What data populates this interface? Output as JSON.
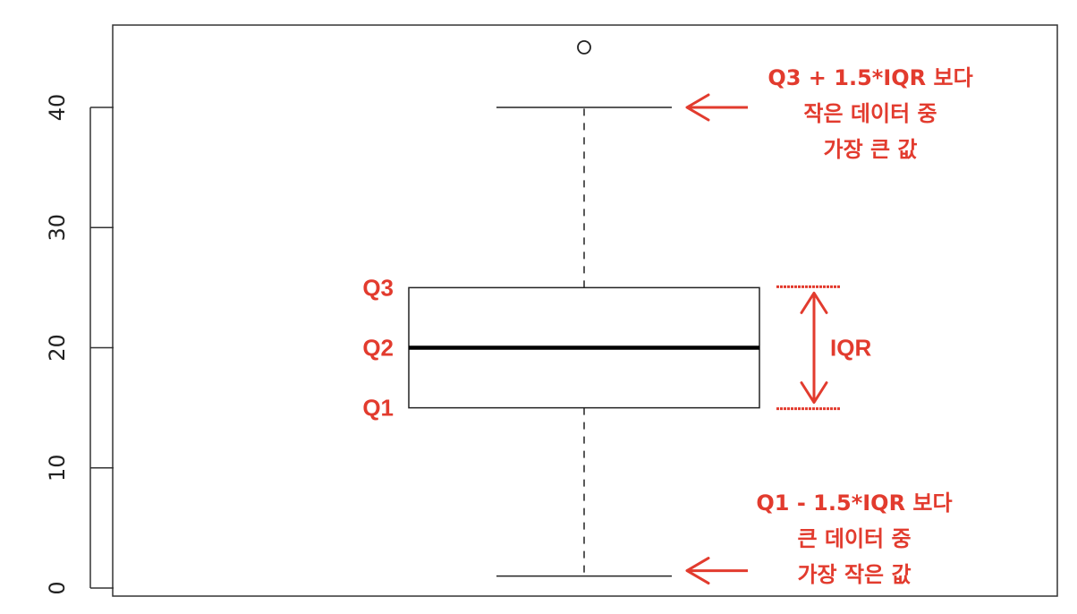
{
  "chart_data": {
    "type": "boxplot",
    "y_ticks": [
      0,
      10,
      20,
      30,
      40
    ],
    "ylim": [
      -0.5,
      47
    ],
    "boxplot": {
      "whisker_low": 1,
      "q1": 15,
      "median": 20,
      "q3": 25,
      "whisker_high": 40,
      "outliers": [
        45
      ]
    },
    "quartile_labels": [
      "Q3",
      "Q2",
      "Q1"
    ],
    "iqr_label": "IQR",
    "annotation_upper": [
      "Q3 + 1.5*IQR 보다",
      "작은 데이터 중",
      "가장 큰 값"
    ],
    "annotation_lower": [
      "Q1 - 1.5*IQR 보다",
      "큰 데이터 중",
      "가장 작은 값"
    ],
    "colors": {
      "annotation": "#e23b2e",
      "box": "#000000",
      "axis": "#222222"
    }
  }
}
